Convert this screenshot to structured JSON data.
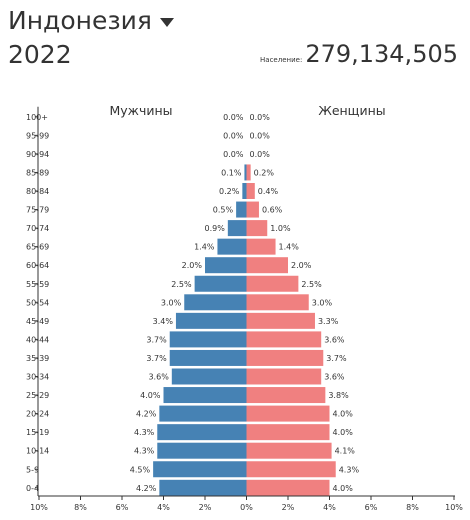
{
  "header": {
    "country": "Индонезия",
    "year": "2022",
    "population_label": "Население:",
    "population_value": "279,134,505"
  },
  "chart_data": {
    "type": "bar",
    "orientation": "horizontal",
    "layout": "population-pyramid",
    "categories": [
      "100+",
      "95-99",
      "90-94",
      "85-89",
      "80-84",
      "75-79",
      "70-74",
      "65-69",
      "60-64",
      "55-59",
      "50-54",
      "45-49",
      "40-44",
      "35-39",
      "30-34",
      "25-29",
      "20-24",
      "15-19",
      "10-14",
      "5-9",
      "0-4"
    ],
    "series": [
      {
        "name": "Мужчины",
        "color": "#4682b4",
        "values": [
          0.0,
          0.0,
          0.0,
          0.1,
          0.2,
          0.5,
          0.9,
          1.4,
          2.0,
          2.5,
          3.0,
          3.4,
          3.7,
          3.7,
          3.6,
          4.0,
          4.2,
          4.3,
          4.3,
          4.5,
          4.2
        ]
      },
      {
        "name": "Женщины",
        "color": "#f08080",
        "values": [
          0.0,
          0.0,
          0.0,
          0.2,
          0.4,
          0.6,
          1.0,
          1.4,
          2.0,
          2.5,
          3.0,
          3.3,
          3.6,
          3.7,
          3.6,
          3.8,
          4.0,
          4.0,
          4.1,
          4.3,
          4.0
        ]
      }
    ],
    "value_labels": {
      "male": [
        "0.0%",
        "0.0%",
        "0.0%",
        "0.1%",
        "0.2%",
        "0.5%",
        "0.9%",
        "1.4%",
        "2.0%",
        "2.5%",
        "3.0%",
        "3.4%",
        "3.7%",
        "3.7%",
        "3.6%",
        "4.0%",
        "4.2%",
        "4.3%",
        "4.3%",
        "4.5%",
        "4.2%"
      ],
      "female": [
        "0.0%",
        "0.0%",
        "0.0%",
        "0.2%",
        "0.4%",
        "0.6%",
        "1.0%",
        "1.4%",
        "2.0%",
        "2.5%",
        "3.0%",
        "3.3%",
        "3.6%",
        "3.7%",
        "3.6%",
        "3.8%",
        "4.0%",
        "4.0%",
        "4.1%",
        "4.3%",
        "4.0%"
      ]
    },
    "x_ticks": [
      "10%",
      "8%",
      "6%",
      "4%",
      "2%",
      "0%",
      "2%",
      "4%",
      "6%",
      "8%",
      "10%"
    ],
    "xlim": [
      -10,
      10
    ]
  }
}
